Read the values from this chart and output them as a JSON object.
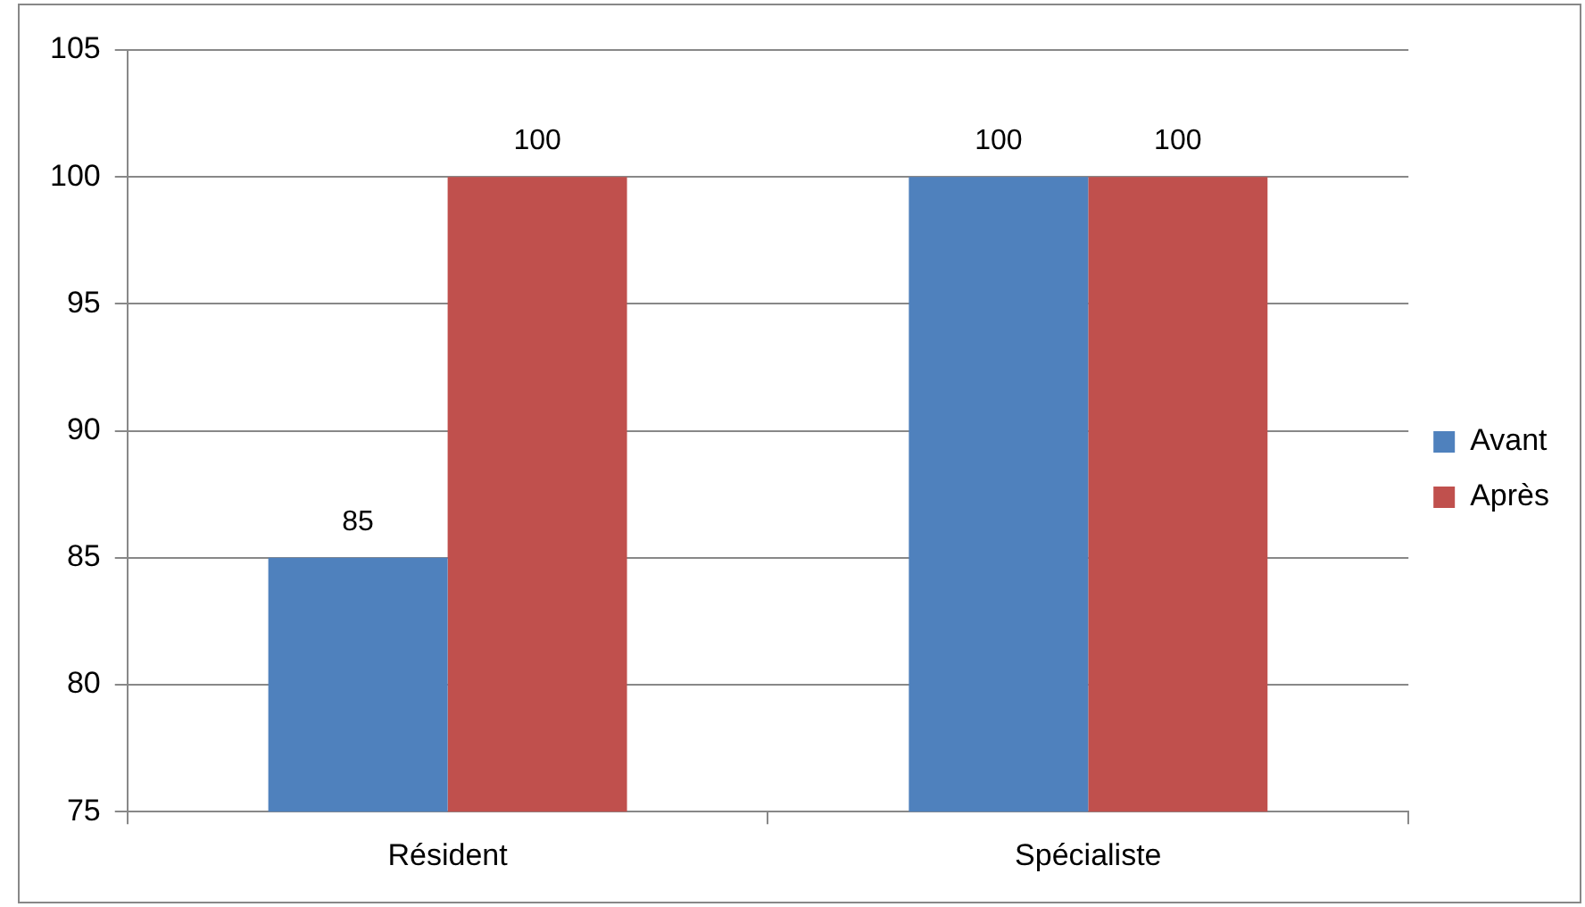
{
  "chart_data": {
    "type": "bar",
    "categories": [
      "Résident",
      "Spécialiste"
    ],
    "series": [
      {
        "name": "Avant",
        "color": "#4f81bd",
        "values": [
          85,
          100
        ]
      },
      {
        "name": "Après",
        "color": "#c0504d",
        "values": [
          100,
          100
        ]
      }
    ],
    "ylim": [
      75,
      105
    ],
    "yticks": [
      75,
      80,
      85,
      90,
      95,
      100,
      105
    ],
    "grid": "y",
    "legend": "right",
    "data_labels": true
  }
}
